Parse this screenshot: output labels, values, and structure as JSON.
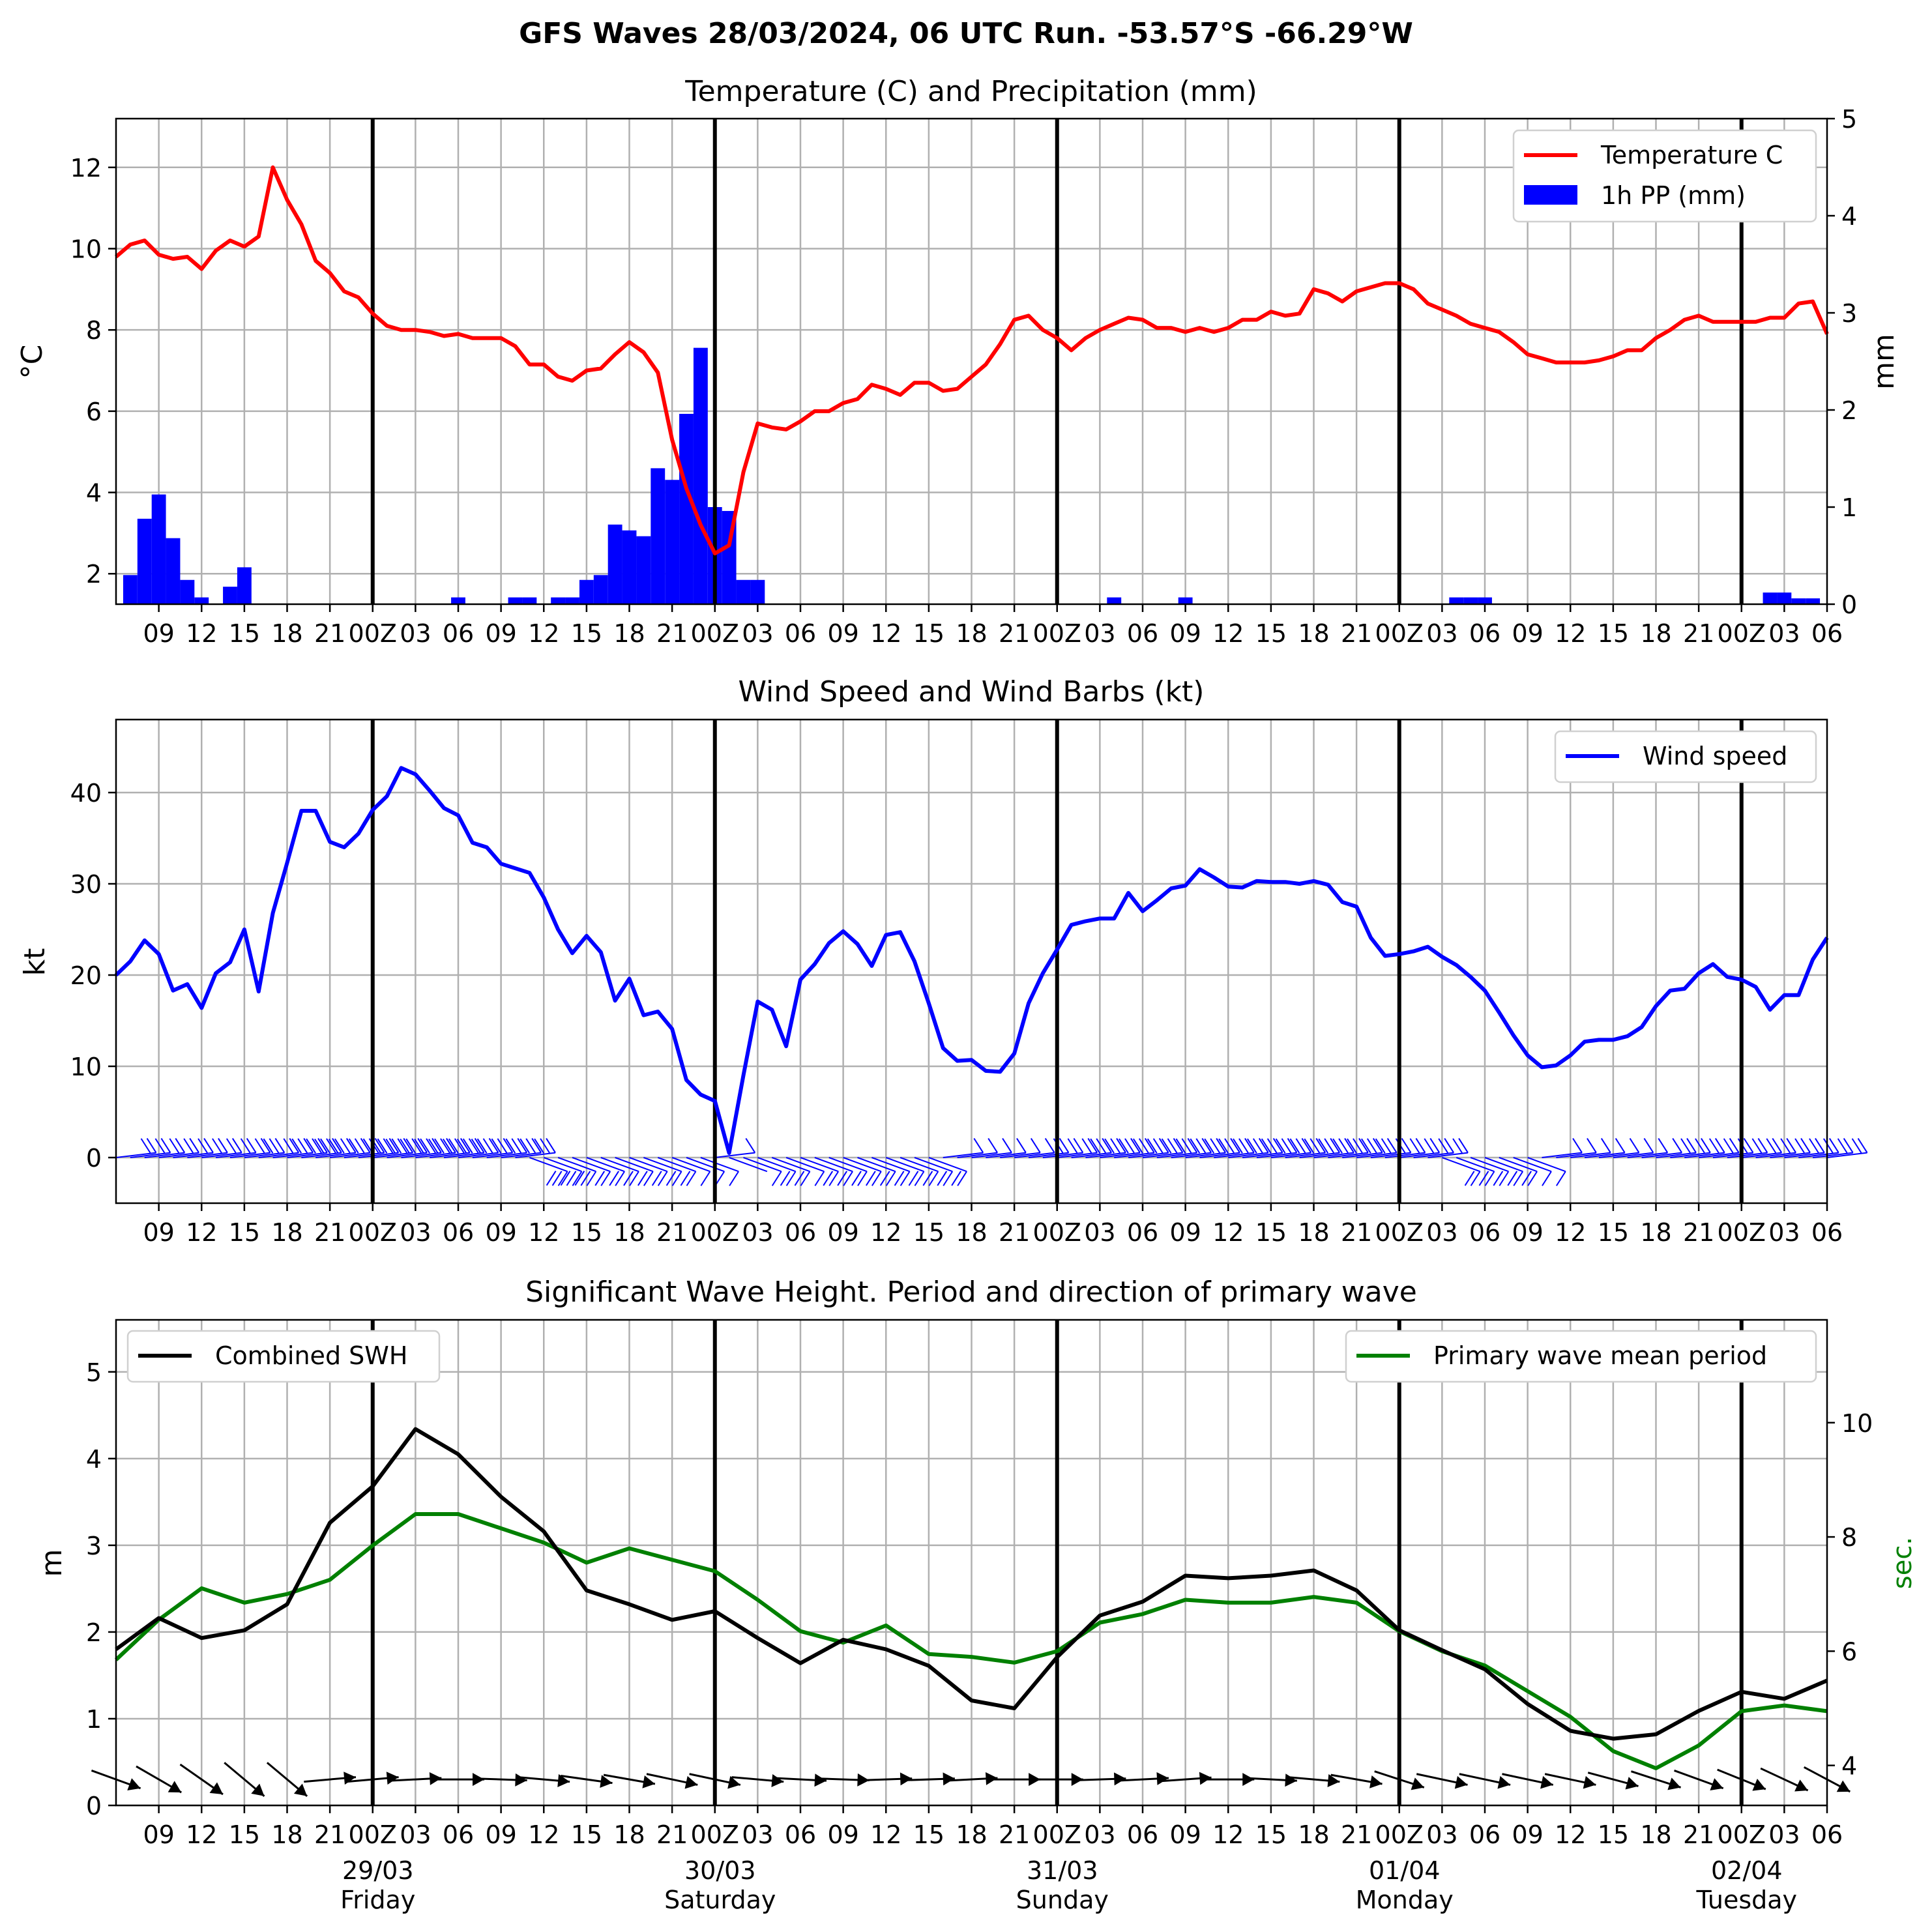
{
  "figure": {
    "suptitle": "GFS Waves 28/03/2024, 06 UTC Run. -53.57°S -66.29°W"
  },
  "colors": {
    "temp": "#ff0000",
    "precip": "#0000ff",
    "wind": "#0000ff",
    "swh": "#000000",
    "period": "#008000",
    "grid": "#b0b0b0"
  },
  "time_axis": {
    "unit": "hours since 28/03 06Z",
    "range": [
      0,
      120
    ],
    "hour_ticks": [
      {
        "t": 3,
        "label": "09"
      },
      {
        "t": 6,
        "label": "12"
      },
      {
        "t": 9,
        "label": "15"
      },
      {
        "t": 12,
        "label": "18"
      },
      {
        "t": 15,
        "label": "21"
      },
      {
        "t": 18,
        "label": "00Z"
      },
      {
        "t": 21,
        "label": "03"
      },
      {
        "t": 24,
        "label": "06"
      },
      {
        "t": 27,
        "label": "09"
      },
      {
        "t": 30,
        "label": "12"
      },
      {
        "t": 33,
        "label": "15"
      },
      {
        "t": 36,
        "label": "18"
      },
      {
        "t": 39,
        "label": "21"
      },
      {
        "t": 42,
        "label": "00Z"
      },
      {
        "t": 45,
        "label": "03"
      },
      {
        "t": 48,
        "label": "06"
      },
      {
        "t": 51,
        "label": "09"
      },
      {
        "t": 54,
        "label": "12"
      },
      {
        "t": 57,
        "label": "15"
      },
      {
        "t": 60,
        "label": "18"
      },
      {
        "t": 63,
        "label": "21"
      },
      {
        "t": 66,
        "label": "00Z"
      },
      {
        "t": 69,
        "label": "03"
      },
      {
        "t": 72,
        "label": "06"
      },
      {
        "t": 75,
        "label": "09"
      },
      {
        "t": 78,
        "label": "12"
      },
      {
        "t": 81,
        "label": "15"
      },
      {
        "t": 84,
        "label": "18"
      },
      {
        "t": 87,
        "label": "21"
      },
      {
        "t": 90,
        "label": "00Z"
      },
      {
        "t": 93,
        "label": "03"
      },
      {
        "t": 96,
        "label": "06"
      },
      {
        "t": 99,
        "label": "09"
      },
      {
        "t": 102,
        "label": "12"
      },
      {
        "t": 105,
        "label": "15"
      },
      {
        "t": 108,
        "label": "18"
      },
      {
        "t": 111,
        "label": "21"
      },
      {
        "t": 114,
        "label": "00Z"
      },
      {
        "t": 117,
        "label": "03"
      },
      {
        "t": 120,
        "label": "06"
      }
    ],
    "day_lines": [
      18,
      42,
      66,
      90,
      114
    ],
    "day_labels": [
      {
        "t": 18,
        "date": "29/03",
        "day": "Friday"
      },
      {
        "t": 42,
        "date": "30/03",
        "day": "Saturday"
      },
      {
        "t": 66,
        "date": "31/03",
        "day": "Sunday"
      },
      {
        "t": 90,
        "date": "01/04",
        "day": "Monday"
      },
      {
        "t": 114,
        "date": "02/04",
        "day": "Tuesday"
      }
    ]
  },
  "chart_data": [
    {
      "type": "line",
      "title": "Temperature (C) and Precipitation (mm)",
      "ylabel": "$^\\circ$C",
      "ylabel_right": "mm",
      "ylim": [
        1.25,
        13.2
      ],
      "yticks": [
        2,
        4,
        6,
        8,
        10,
        12
      ],
      "ylim_right": [
        0,
        5
      ],
      "yticks_right": [
        0,
        1,
        2,
        3,
        4,
        5
      ],
      "legend": {
        "position": "top-right",
        "entries": [
          "Temperature C",
          "1h PP (mm)"
        ]
      },
      "series": [
        {
          "name": "Temperature C",
          "axis": "left",
          "x": [
            0,
            1,
            2,
            3,
            4,
            5,
            6,
            7,
            8,
            9,
            10,
            11,
            12,
            13,
            14,
            15,
            16,
            17,
            18,
            19,
            20,
            21,
            22,
            23,
            24,
            25,
            26,
            27,
            28,
            29,
            30,
            31,
            32,
            33,
            34,
            35,
            36,
            37,
            38,
            39,
            40,
            41,
            42,
            43,
            44,
            45,
            46,
            47,
            48,
            49,
            50,
            51,
            52,
            53,
            54,
            55,
            56,
            57,
            58,
            59,
            60,
            61,
            62,
            63,
            64,
            65,
            66,
            67,
            68,
            69,
            70,
            71,
            72,
            73,
            74,
            75,
            76,
            77,
            78,
            79,
            80,
            81,
            82,
            83,
            84,
            85,
            86,
            87,
            88,
            89,
            90,
            91,
            92,
            93,
            94,
            95,
            96,
            97,
            98,
            99,
            100,
            101,
            102,
            103,
            104,
            105,
            106,
            107,
            108,
            109,
            110,
            111,
            112,
            113,
            114,
            115,
            116,
            117,
            118,
            119,
            120
          ],
          "values": [
            9.8,
            10.1,
            10.2,
            9.85,
            9.75,
            9.8,
            9.5,
            9.95,
            10.2,
            10.05,
            10.3,
            12.0,
            11.2,
            10.6,
            9.7,
            9.4,
            8.95,
            8.8,
            8.4,
            8.1,
            8.0,
            8.0,
            7.95,
            7.85,
            7.9,
            7.8,
            7.8,
            7.8,
            7.6,
            7.15,
            7.15,
            6.85,
            6.75,
            7.0,
            7.05,
            7.4,
            7.7,
            7.45,
            6.95,
            5.3,
            4.1,
            3.2,
            2.5,
            2.7,
            4.5,
            5.7,
            5.6,
            5.55,
            5.75,
            6.0,
            6.0,
            6.2,
            6.3,
            6.65,
            6.55,
            6.4,
            6.7,
            6.7,
            6.5,
            6.55,
            6.85,
            7.15,
            7.65,
            8.25,
            8.35,
            8.0,
            7.8,
            7.5,
            7.8,
            8.0,
            8.15,
            8.3,
            8.25,
            8.05,
            8.05,
            7.95,
            8.05,
            7.95,
            8.05,
            8.25,
            8.25,
            8.45,
            8.35,
            8.4,
            9.0,
            8.9,
            8.7,
            8.95,
            9.05,
            9.15,
            9.15,
            9.0,
            8.65,
            8.5,
            8.35,
            8.15,
            8.05,
            7.95,
            7.7,
            7.4,
            7.3,
            7.2,
            7.2,
            7.2,
            7.25,
            7.35,
            7.5,
            7.5,
            7.8,
            8.0,
            8.25,
            8.35,
            8.2,
            8.2,
            8.2,
            8.2,
            8.3,
            8.3,
            8.65,
            8.7,
            7.9
          ]
        },
        {
          "name": "1h PP (mm)",
          "type": "bar",
          "axis": "right",
          "x": [
            1,
            2,
            3,
            4,
            5,
            6,
            8,
            9,
            24,
            28,
            29,
            31,
            32,
            33,
            34,
            35,
            36,
            37,
            38,
            39,
            40,
            41,
            42,
            43,
            44,
            45,
            70,
            75,
            94,
            95,
            96,
            116,
            117,
            118,
            119
          ],
          "values": [
            0.3,
            0.88,
            1.13,
            0.68,
            0.25,
            0.07,
            0.18,
            0.38,
            0.07,
            0.07,
            0.07,
            0.07,
            0.07,
            0.25,
            0.3,
            0.82,
            0.76,
            0.7,
            1.4,
            1.28,
            1.96,
            2.64,
            1.0,
            0.96,
            0.25,
            0.25,
            0.07,
            0.07,
            0.07,
            0.07,
            0.07,
            0.12,
            0.12,
            0.06,
            0.06
          ]
        }
      ]
    },
    {
      "type": "line",
      "title": "Wind Speed and Wind Barbs (kt)",
      "ylabel": "kt",
      "ylim": [
        -5,
        48
      ],
      "yticks": [
        0,
        10,
        20,
        30,
        40
      ],
      "legend": {
        "position": "top-right",
        "entries": [
          "Wind speed"
        ]
      },
      "series": [
        {
          "name": "Wind speed",
          "x": [
            0,
            1,
            2,
            3,
            4,
            5,
            6,
            7,
            8,
            9,
            10,
            11,
            12,
            13,
            14,
            15,
            16,
            17,
            18,
            19,
            20,
            21,
            22,
            23,
            24,
            25,
            26,
            27,
            28,
            29,
            30,
            31,
            32,
            33,
            34,
            35,
            36,
            37,
            38,
            39,
            40,
            41,
            42,
            43,
            44,
            45,
            46,
            47,
            48,
            49,
            50,
            51,
            52,
            53,
            54,
            55,
            56,
            57,
            58,
            59,
            60,
            61,
            62,
            63,
            64,
            65,
            66,
            67,
            68,
            69,
            70,
            71,
            72,
            73,
            74,
            75,
            76,
            77,
            78,
            79,
            80,
            81,
            82,
            83,
            84,
            85,
            86,
            87,
            88,
            89,
            90,
            91,
            92,
            93,
            94,
            95,
            96,
            97,
            98,
            99,
            100,
            101,
            102,
            103,
            104,
            105,
            106,
            107,
            108,
            109,
            110,
            111,
            112,
            113,
            114,
            115,
            116,
            117,
            118,
            119,
            120
          ],
          "values": [
            20.0,
            21.5,
            23.8,
            22.3,
            18.3,
            19.0,
            16.4,
            20.2,
            21.4,
            25.0,
            18.2,
            26.8,
            32.3,
            38.0,
            38.0,
            34.6,
            34.0,
            35.5,
            38.1,
            39.6,
            42.7,
            42.0,
            40.2,
            38.3,
            37.5,
            34.5,
            34.0,
            32.2,
            31.7,
            31.2,
            28.5,
            25.0,
            22.4,
            24.3,
            22.5,
            17.2,
            19.6,
            15.6,
            16.0,
            14.1,
            8.5,
            6.9,
            6.2,
            0.5,
            9.0,
            17.1,
            16.2,
            12.2,
            19.5,
            21.2,
            23.5,
            24.8,
            23.4,
            21.0,
            24.4,
            24.7,
            21.5,
            16.9,
            12.0,
            10.6,
            10.7,
            9.5,
            9.4,
            11.4,
            16.9,
            20.2,
            22.8,
            25.5,
            25.9,
            26.2,
            26.2,
            29.0,
            27.0,
            28.2,
            29.5,
            29.8,
            31.6,
            30.7,
            29.7,
            29.6,
            30.3,
            30.2,
            30.2,
            30.0,
            30.3,
            29.9,
            28.0,
            27.5,
            24.1,
            22.1,
            22.3,
            22.6,
            23.1,
            22.0,
            21.1,
            19.8,
            18.3,
            15.9,
            13.4,
            11.2,
            9.9,
            10.1,
            11.2,
            12.7,
            12.9,
            12.9,
            13.3,
            14.3,
            16.6,
            18.3,
            18.5,
            20.2,
            21.2,
            19.8,
            19.5,
            18.7,
            16.2,
            17.8,
            17.8,
            21.7,
            24.1
          ]
        }
      ],
      "barbs": {
        "t_start": 0,
        "t_step": 1,
        "u_v_computed": "from wind speed and direction"
      }
    },
    {
      "type": "line",
      "title": "Significant Wave Height. Period and direction of primary wave",
      "ylabel": "m",
      "ylabel_right": "sec.",
      "ylim": [
        0,
        5.6
      ],
      "yticks": [
        0,
        1,
        2,
        3,
        4,
        5
      ],
      "ylim_right": [
        3.3,
        11.8
      ],
      "yticks_right": [
        4,
        6,
        8,
        10
      ],
      "legend": {
        "left": "Combined SWH",
        "right": "Primary wave mean period"
      },
      "series": [
        {
          "name": "Combined SWH",
          "axis": "left",
          "x": [
            0,
            3,
            6,
            9,
            12,
            15,
            18,
            21,
            24,
            27,
            30,
            33,
            36,
            39,
            42,
            45,
            48,
            51,
            54,
            57,
            60,
            63,
            66,
            69,
            72,
            75,
            78,
            81,
            84,
            87,
            90,
            93,
            96,
            99,
            102,
            105,
            108,
            111,
            114,
            117,
            120
          ],
          "values": [
            1.8,
            2.16,
            1.93,
            2.02,
            2.32,
            3.26,
            3.68,
            4.34,
            4.05,
            3.56,
            3.16,
            2.48,
            2.32,
            2.14,
            2.24,
            1.93,
            1.64,
            1.91,
            1.8,
            1.61,
            1.21,
            1.12,
            1.71,
            2.19,
            2.35,
            2.65,
            2.62,
            2.65,
            2.71,
            2.48,
            2.02,
            1.79,
            1.57,
            1.17,
            0.86,
            0.77,
            0.82,
            1.09,
            1.31,
            1.23,
            1.44
          ]
        },
        {
          "name": "Primary wave mean period",
          "axis": "right",
          "x": [
            0,
            3,
            6,
            9,
            12,
            15,
            18,
            21,
            24,
            27,
            30,
            33,
            36,
            39,
            42,
            45,
            48,
            51,
            54,
            57,
            60,
            63,
            66,
            69,
            72,
            75,
            78,
            81,
            84,
            87,
            90,
            93,
            96,
            99,
            102,
            105,
            108,
            111,
            114,
            117,
            120
          ],
          "values": [
            5.85,
            6.55,
            7.1,
            6.85,
            7.0,
            7.25,
            7.85,
            8.4,
            8.4,
            8.15,
            7.9,
            7.55,
            7.8,
            7.6,
            7.4,
            6.9,
            6.35,
            6.15,
            6.45,
            5.95,
            5.9,
            5.8,
            6.0,
            6.5,
            6.65,
            6.9,
            6.85,
            6.85,
            6.95,
            6.85,
            6.35,
            6.0,
            5.75,
            5.3,
            4.85,
            4.25,
            3.95,
            4.35,
            4.95,
            5.05,
            4.95
          ]
        }
      ],
      "wave_dir_arrows": {
        "x": [
          0,
          3,
          6,
          9,
          12,
          15,
          18,
          21,
          24,
          27,
          30,
          33,
          36,
          39,
          42,
          45,
          48,
          51,
          54,
          57,
          60,
          63,
          66,
          69,
          72,
          75,
          78,
          81,
          84,
          87,
          90,
          93,
          96,
          99,
          102,
          105,
          108,
          111,
          114,
          117,
          120
        ],
        "angles_deg": [
          20,
          30,
          35,
          40,
          40,
          -5,
          -5,
          -3,
          0,
          2,
          5,
          8,
          10,
          12,
          12,
          5,
          3,
          2,
          -2,
          -2,
          -3,
          0,
          0,
          -2,
          -3,
          -4,
          0,
          3,
          5,
          10,
          18,
          12,
          12,
          12,
          12,
          15,
          18,
          20,
          22,
          25,
          28
        ]
      }
    }
  ]
}
